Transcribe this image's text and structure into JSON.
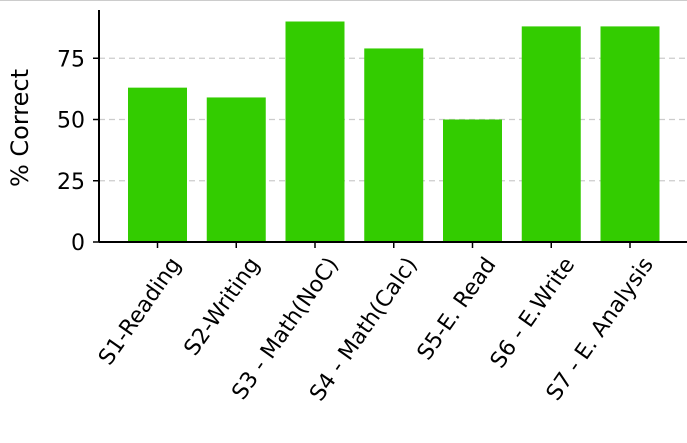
{
  "chart_data": {
    "type": "bar",
    "categories": [
      "S1-Reading",
      "S2-Writing",
      "S3 - Math(NoC)",
      "S4 - Math(Calc)",
      "S5-E. Read",
      "S6 - E.Write",
      "S7 - E. Analysis"
    ],
    "values": [
      63,
      59,
      90,
      79,
      50,
      88,
      88
    ],
    "title": "",
    "xlabel": "",
    "ylabel": "% Correct",
    "ylim": [
      0,
      95
    ],
    "yticks": [
      0,
      25,
      50,
      75
    ],
    "grid": "horizontal dashed",
    "colors": {
      "bar": "#33cc00",
      "grid": "#cccccc",
      "axis": "#000000"
    }
  }
}
